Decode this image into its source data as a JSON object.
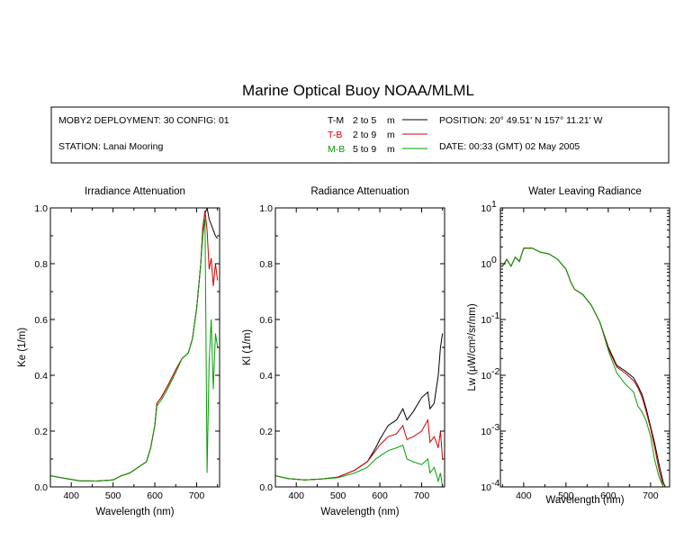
{
  "title": "Marine Optical Buoy NOAA/MLML",
  "info": {
    "deployment": "MOBY2 DEPLOYMENT: 30 CONFIG: 01",
    "station": "STATION: Lanai Mooring",
    "position": "POSITION: 20° 49.51' N   157° 11.21' W",
    "date": "DATE: 00:33 (GMT) 02 May 2005",
    "legend": [
      {
        "key": "T-M",
        "range": "2 to 5",
        "unit": "m",
        "color": "#000000"
      },
      {
        "key": "T-B",
        "range": "2 to 9",
        "unit": "m",
        "color": "#d40000"
      },
      {
        "key": "M-B",
        "range": "5 to 9",
        "unit": "m",
        "color": "#00a000"
      }
    ]
  },
  "chart_data": [
    {
      "type": "line",
      "title": "Irradiance Attenuation",
      "xlabel": "Wavelength (nm)",
      "ylabel": "Ke  (1/m)",
      "xlim": [
        350,
        755
      ],
      "ylim": [
        0,
        1
      ],
      "xticks": [
        "400",
        "500",
        "600",
        "700"
      ],
      "yticks": [
        "0.0",
        "0.2",
        "0.4",
        "0.6",
        "0.8",
        "1.0"
      ],
      "series": [
        {
          "name": "T-M",
          "color": "#000000",
          "x": [
            350,
            380,
            420,
            460,
            500,
            520,
            540,
            560,
            580,
            590,
            600,
            605,
            615,
            630,
            650,
            665,
            680,
            690,
            700,
            710,
            715,
            720,
            725,
            730,
            735,
            740,
            745,
            750
          ],
          "y": [
            0.04,
            0.032,
            0.022,
            0.021,
            0.025,
            0.04,
            0.05,
            0.07,
            0.09,
            0.14,
            0.22,
            0.3,
            0.32,
            0.36,
            0.42,
            0.46,
            0.48,
            0.53,
            0.64,
            0.8,
            0.93,
            0.98,
            1.0,
            0.96,
            0.94,
            0.92,
            0.9,
            0.89
          ]
        },
        {
          "name": "T-B",
          "color": "#d40000",
          "x": [
            350,
            380,
            420,
            460,
            500,
            520,
            540,
            560,
            580,
            590,
            600,
            605,
            615,
            630,
            650,
            665,
            680,
            690,
            700,
            710,
            715,
            720,
            725,
            730,
            735,
            740,
            745,
            750
          ],
          "y": [
            0.04,
            0.032,
            0.022,
            0.021,
            0.025,
            0.04,
            0.05,
            0.07,
            0.09,
            0.14,
            0.22,
            0.3,
            0.32,
            0.36,
            0.42,
            0.46,
            0.48,
            0.53,
            0.64,
            0.8,
            0.93,
            0.99,
            0.92,
            0.78,
            0.82,
            0.72,
            0.8,
            0.74
          ]
        },
        {
          "name": "M-B",
          "color": "#00a000",
          "x": [
            350,
            380,
            420,
            460,
            500,
            520,
            540,
            560,
            580,
            590,
            600,
            605,
            615,
            630,
            650,
            665,
            680,
            690,
            700,
            710,
            715,
            720,
            725,
            730,
            735,
            740,
            745,
            750
          ],
          "y": [
            0.04,
            0.032,
            0.022,
            0.021,
            0.025,
            0.04,
            0.05,
            0.07,
            0.09,
            0.14,
            0.22,
            0.29,
            0.31,
            0.35,
            0.41,
            0.46,
            0.48,
            0.53,
            0.64,
            0.8,
            0.9,
            0.96,
            0.05,
            0.45,
            0.6,
            0.35,
            0.55,
            0.5
          ]
        }
      ]
    },
    {
      "type": "line",
      "title": "Radiance Attenuation",
      "xlabel": "Wavelength (nm)",
      "ylabel": "Kl  (1/m)",
      "xlim": [
        350,
        755
      ],
      "ylim": [
        0,
        1
      ],
      "xticks": [
        "400",
        "500",
        "600",
        "700"
      ],
      "yticks": [
        "0.0",
        "0.2",
        "0.4",
        "0.6",
        "0.8",
        "1.0"
      ],
      "series": [
        {
          "name": "T-M",
          "color": "#000000",
          "x": [
            350,
            380,
            420,
            460,
            500,
            540,
            570,
            590,
            600,
            620,
            640,
            655,
            665,
            680,
            700,
            715,
            720,
            730,
            740,
            745,
            750
          ],
          "y": [
            0.04,
            0.03,
            0.025,
            0.028,
            0.035,
            0.06,
            0.09,
            0.14,
            0.17,
            0.22,
            0.24,
            0.28,
            0.24,
            0.27,
            0.32,
            0.34,
            0.28,
            0.3,
            0.4,
            0.5,
            0.55
          ]
        },
        {
          "name": "T-B",
          "color": "#d40000",
          "x": [
            350,
            380,
            420,
            460,
            500,
            540,
            570,
            590,
            600,
            620,
            640,
            655,
            665,
            680,
            700,
            715,
            720,
            730,
            740,
            745,
            750
          ],
          "y": [
            0.04,
            0.03,
            0.025,
            0.028,
            0.035,
            0.06,
            0.09,
            0.13,
            0.15,
            0.18,
            0.19,
            0.22,
            0.17,
            0.18,
            0.2,
            0.24,
            0.16,
            0.18,
            0.14,
            0.2,
            0.1
          ]
        },
        {
          "name": "M-B",
          "color": "#00a000",
          "x": [
            350,
            380,
            420,
            460,
            500,
            540,
            570,
            590,
            600,
            620,
            640,
            655,
            665,
            680,
            700,
            715,
            720,
            730,
            740,
            745,
            750
          ],
          "y": [
            0.04,
            0.03,
            0.025,
            0.028,
            0.033,
            0.05,
            0.07,
            0.1,
            0.11,
            0.13,
            0.14,
            0.15,
            0.1,
            0.09,
            0.08,
            0.1,
            0.05,
            0.07,
            0.02,
            0.05,
            0.0
          ]
        }
      ]
    },
    {
      "type": "line",
      "title": "Water Leaving Radiance",
      "xlabel": "Wavelength (nm)",
      "ylabel": "Lw  (µW/cm²/sr/nm)",
      "xscale": "linear",
      "yscale": "log",
      "xlim": [
        345,
        745
      ],
      "ylim": [
        0.0001,
        10
      ],
      "xticks": [
        "400",
        "500",
        "600",
        "700"
      ],
      "yticks": [
        "10",
        "10",
        "10",
        "10",
        "10",
        "10"
      ],
      "ytick_exponents": [
        "-4",
        "-3",
        "-2",
        "-1",
        "0",
        "1"
      ],
      "series": [
        {
          "name": "T-M",
          "color": "#000000",
          "x": [
            350,
            360,
            370,
            380,
            390,
            400,
            420,
            440,
            460,
            480,
            500,
            510,
            520,
            540,
            560,
            580,
            600,
            620,
            640,
            660,
            670,
            680,
            690,
            700,
            710,
            720,
            730,
            735,
            740
          ],
          "y": [
            0.9,
            1.2,
            0.9,
            1.3,
            1.1,
            1.9,
            1.9,
            1.6,
            1.5,
            1.2,
            0.8,
            0.5,
            0.35,
            0.28,
            0.18,
            0.09,
            0.032,
            0.015,
            0.012,
            0.009,
            0.0065,
            0.0045,
            0.0025,
            0.0012,
            0.0006,
            0.00025,
            0.00012,
            0.0001,
            0.0001
          ]
        },
        {
          "name": "T-B",
          "color": "#d40000",
          "x": [
            350,
            360,
            370,
            380,
            390,
            400,
            420,
            440,
            460,
            480,
            500,
            510,
            520,
            540,
            560,
            580,
            600,
            620,
            640,
            660,
            670,
            680,
            690,
            700,
            710,
            720,
            730,
            735,
            740
          ],
          "y": [
            0.9,
            1.2,
            0.9,
            1.3,
            1.1,
            1.9,
            1.9,
            1.6,
            1.5,
            1.2,
            0.8,
            0.5,
            0.35,
            0.28,
            0.18,
            0.09,
            0.03,
            0.014,
            0.011,
            0.008,
            0.006,
            0.004,
            0.0022,
            0.0011,
            0.0005,
            0.0002,
            0.0001,
            0.0001,
            0.0001
          ]
        },
        {
          "name": "M-B",
          "color": "#00a000",
          "x": [
            350,
            360,
            370,
            380,
            390,
            400,
            420,
            440,
            460,
            480,
            500,
            510,
            520,
            540,
            560,
            580,
            600,
            620,
            640,
            660,
            670,
            680,
            690,
            700,
            710,
            720,
            730,
            735,
            740
          ],
          "y": [
            0.9,
            1.2,
            0.9,
            1.3,
            1.1,
            1.9,
            1.9,
            1.6,
            1.5,
            1.2,
            0.8,
            0.5,
            0.35,
            0.28,
            0.18,
            0.09,
            0.028,
            0.011,
            0.007,
            0.005,
            0.0028,
            0.0022,
            0.0015,
            0.0008,
            0.0003,
            0.00015,
            0.0001,
            0.0001,
            0.0001
          ]
        }
      ]
    }
  ]
}
